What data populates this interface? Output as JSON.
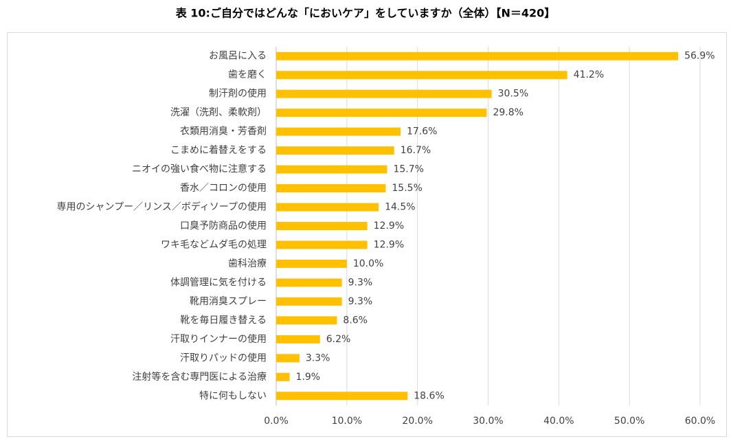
{
  "chart_data": {
    "type": "bar",
    "orientation": "horizontal",
    "title": "表 10:ご自分ではどんな「においケア」をしていますか（全体）【N＝420】",
    "categories": [
      "お風呂に入る",
      "歯を磨く",
      "制汗剤の使用",
      "洗濯（洗剤、柔軟剤）",
      "衣類用消臭・芳香剤",
      "こまめに着替えをする",
      "ニオイの強い食べ物に注意する",
      "香水／コロンの使用",
      "専用のシャンプー／リンス／ボディソープの使用",
      "口臭予防商品の使用",
      "ワキ毛などムダ毛の処理",
      "歯科治療",
      "体調管理に気を付ける",
      "靴用消臭スプレー",
      "靴を毎日履き替える",
      "汗取りインナーの使用",
      "汗取りパッドの使用",
      "注射等を含む専門医による治療",
      "特に何もしない"
    ],
    "values": [
      56.9,
      41.2,
      30.5,
      29.8,
      17.6,
      16.7,
      15.7,
      15.5,
      14.5,
      12.9,
      12.9,
      10.0,
      9.3,
      9.3,
      8.6,
      6.2,
      3.3,
      1.9,
      18.6
    ],
    "value_labels": [
      "56.9%",
      "41.2%",
      "30.5%",
      "29.8%",
      "17.6%",
      "16.7%",
      "15.7%",
      "15.5%",
      "14.5%",
      "12.9%",
      "12.9%",
      "10.0%",
      "9.3%",
      "9.3%",
      "8.6%",
      "6.2%",
      "3.3%",
      "1.9%",
      "18.6%"
    ],
    "color": "#ffc000",
    "xlim": [
      0,
      60
    ],
    "xticks": [
      {
        "value": 0,
        "label": "0.0%"
      },
      {
        "value": 10,
        "label": "10.0%"
      },
      {
        "value": 20,
        "label": "20.0%"
      },
      {
        "value": 30,
        "label": "30.0%"
      },
      {
        "value": 40,
        "label": "40.0%"
      },
      {
        "value": 50,
        "label": "50.0%"
      },
      {
        "value": 60,
        "label": "60.0%"
      }
    ],
    "grid": true
  }
}
